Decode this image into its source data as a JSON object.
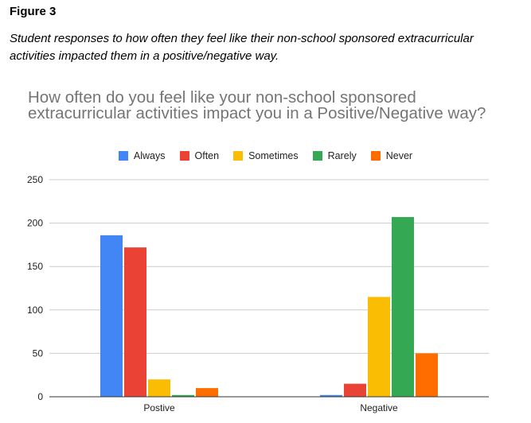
{
  "figure": {
    "label": "Figure 3",
    "caption": "Student responses to how often they feel like their non-school sponsored extracurricular activities impacted them in a positive/negative way."
  },
  "chart_data": {
    "type": "bar",
    "title": "How often do you feel like your non-school sponsored extracurricular activities impact you in a Positive/Negative way?",
    "categories": [
      "Postive",
      "Negative"
    ],
    "series": [
      {
        "name": "Always",
        "color": "#4285f4",
        "values": [
          186,
          2
        ]
      },
      {
        "name": "Often",
        "color": "#ea4335",
        "values": [
          172,
          15
        ]
      },
      {
        "name": "Sometimes",
        "color": "#fbbc04",
        "values": [
          20,
          115
        ]
      },
      {
        "name": "Rarely",
        "color": "#34a853",
        "values": [
          2,
          207
        ]
      },
      {
        "name": "Never",
        "color": "#ff6d01",
        "values": [
          10,
          50
        ]
      }
    ],
    "yticks": [
      0,
      50,
      100,
      150,
      200,
      250
    ],
    "ylim": [
      0,
      250
    ],
    "grid": true,
    "legend_position": "top"
  }
}
